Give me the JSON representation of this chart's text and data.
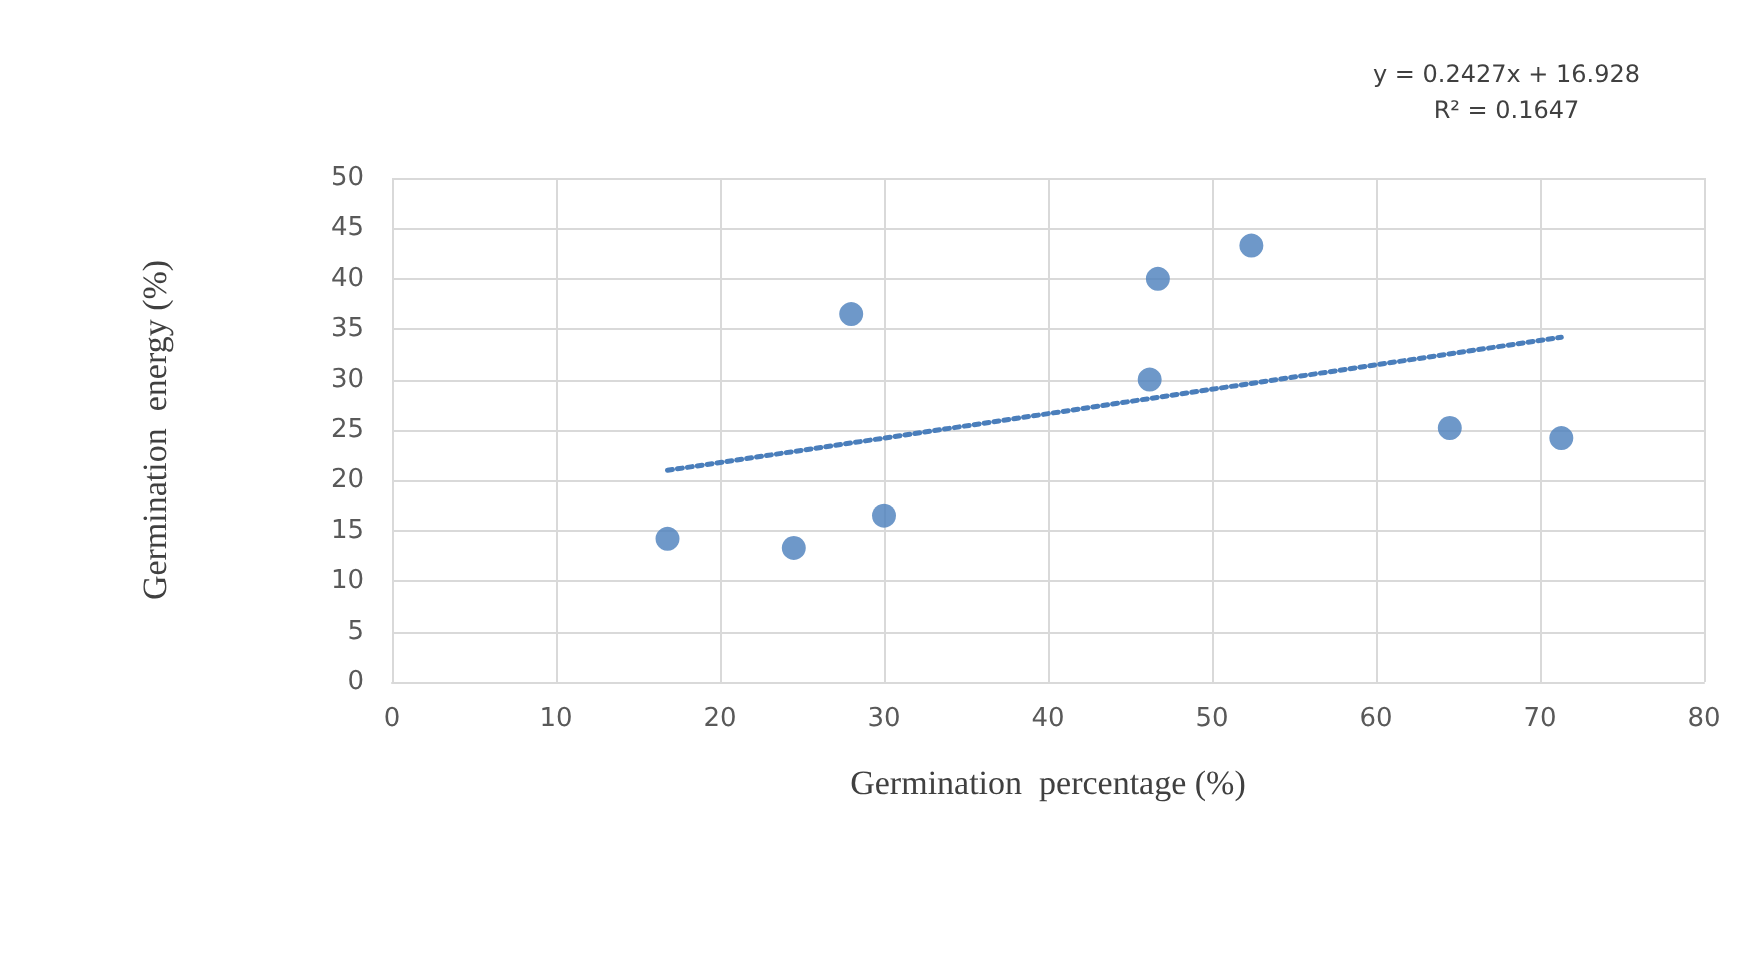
{
  "chart_data": {
    "type": "scatter",
    "xlabel": "Germination  percentage (%)",
    "ylabel": "Germination  energy (%)",
    "series": [
      {
        "color": "#4a7ebb",
        "x": [
          16.8,
          24.5,
          28.0,
          30.0,
          46.2,
          46.7,
          52.4,
          64.5,
          71.3
        ],
        "values": [
          14.2,
          13.3,
          36.5,
          16.5,
          30.0,
          40.0,
          43.3,
          25.2,
          24.2
        ]
      },
      {
        "type": "line",
        "color": "#4a7ebb",
        "line_style": "dotted",
        "marker": "none",
        "x": [
          16.8,
          71.3
        ],
        "values": [
          21.0,
          34.2
        ]
      }
    ],
    "marker": "circle",
    "xlim": [
      0,
      80
    ],
    "xticks": [
      0,
      10,
      20,
      30,
      40,
      50,
      60,
      70,
      80
    ],
    "ylim": [
      0,
      50
    ],
    "yticks": [
      0,
      5,
      10,
      15,
      20,
      25,
      30,
      35,
      40,
      45,
      50
    ],
    "grid": true,
    "annotations": [
      "y = 0.2427x + 16.928\nR² = 0.1647"
    ]
  }
}
